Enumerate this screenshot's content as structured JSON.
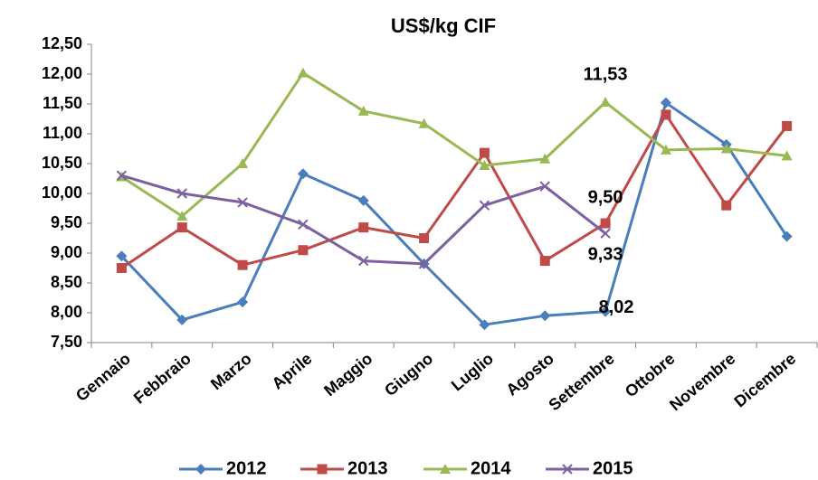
{
  "chart_data": {
    "type": "line",
    "title": "US$/kg CIF",
    "categories": [
      "Gennaio",
      "Febbraio",
      "Marzo",
      "Aprile",
      "Maggio",
      "Giugno",
      "Luglio",
      "Agosto",
      "Settembre",
      "Ottobre",
      "Novembre",
      "Dicembre"
    ],
    "series": [
      {
        "name": "2012",
        "color": "#4a7ebb",
        "marker": "diamond",
        "values": [
          8.95,
          7.88,
          8.18,
          10.33,
          9.88,
          8.82,
          7.8,
          7.95,
          8.02,
          11.52,
          10.82,
          9.28
        ],
        "value_labels": [
          null,
          null,
          null,
          null,
          null,
          null,
          null,
          null,
          "8,02",
          null,
          null,
          null
        ]
      },
      {
        "name": "2013",
        "color": "#be4b48",
        "marker": "square",
        "values": [
          8.75,
          9.43,
          8.8,
          9.05,
          9.43,
          9.25,
          10.68,
          8.87,
          9.5,
          11.32,
          9.8,
          11.13
        ],
        "value_labels": [
          null,
          null,
          null,
          null,
          null,
          null,
          null,
          null,
          "9,50",
          null,
          null,
          null
        ]
      },
      {
        "name": "2014",
        "color": "#98b954",
        "marker": "triangle",
        "values": [
          10.28,
          9.62,
          10.5,
          12.02,
          11.38,
          11.17,
          10.47,
          10.58,
          11.53,
          10.73,
          10.75,
          10.63
        ],
        "value_labels": [
          null,
          null,
          null,
          null,
          null,
          null,
          null,
          null,
          "11,53",
          null,
          null,
          null
        ]
      },
      {
        "name": "2015",
        "color": "#7d60a0",
        "marker": "x",
        "values": [
          10.3,
          10.0,
          9.85,
          9.48,
          8.87,
          8.82,
          9.8,
          10.12,
          9.33,
          null,
          null,
          null
        ],
        "value_labels": [
          null,
          null,
          null,
          null,
          null,
          null,
          null,
          null,
          "9,33",
          null,
          null,
          null
        ]
      }
    ],
    "ylim": [
      7.5,
      12.5
    ],
    "yticks": [
      {
        "value": 7.5,
        "label": "7,50"
      },
      {
        "value": 8,
        "label": "8,00"
      },
      {
        "value": 8.5,
        "label": "8,50"
      },
      {
        "value": 9,
        "label": "9,00"
      },
      {
        "value": 9.5,
        "label": "9,50"
      },
      {
        "value": 10,
        "label": "10,00"
      },
      {
        "value": 10.5,
        "label": "10,50"
      },
      {
        "value": 11,
        "label": "11,00"
      },
      {
        "value": 11.5,
        "label": "11,50"
      },
      {
        "value": 12,
        "label": "12,00"
      },
      {
        "value": 12.5,
        "label": "12,50"
      }
    ],
    "grid": false,
    "legend": "bottom"
  }
}
